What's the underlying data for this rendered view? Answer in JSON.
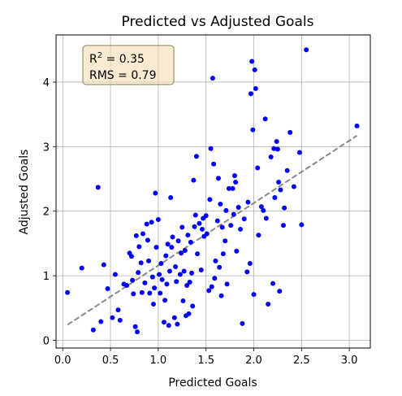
{
  "chart_data": {
    "type": "scatter",
    "title": "Predicted vs Adjusted Goals",
    "xlabel": "Predicted Goals",
    "ylabel": "Adjusted Goals",
    "xlim": [
      -0.07,
      3.22
    ],
    "ylim": [
      -0.12,
      4.73
    ],
    "xticks": [
      "0.0",
      "0.5",
      "1.0",
      "1.5",
      "2.0",
      "2.5",
      "3.0"
    ],
    "xtick_values": [
      0.0,
      0.5,
      1.0,
      1.5,
      2.0,
      2.5,
      3.0
    ],
    "yticks": [
      "0",
      "1",
      "2",
      "3",
      "4"
    ],
    "ytick_values": [
      0,
      1,
      2,
      3,
      4
    ],
    "grid": true,
    "point_color": "#0000ff",
    "fit_color": "#888888",
    "annotation": {
      "r2_prefix": "R",
      "r2_sup": "2",
      "r2_value": " = 0.35",
      "rms": "RMS = 0.79",
      "box_fill": "#f5deb3",
      "box_stroke": "#8a7a5a"
    },
    "fit_line": {
      "x": [
        0.05,
        3.08
      ],
      "y": [
        0.24,
        3.17
      ]
    },
    "points": [
      [
        0.05,
        0.74
      ],
      [
        0.2,
        1.12
      ],
      [
        0.32,
        0.16
      ],
      [
        0.37,
        2.37
      ],
      [
        0.4,
        0.29
      ],
      [
        0.43,
        1.17
      ],
      [
        0.47,
        0.8
      ],
      [
        0.52,
        0.35
      ],
      [
        0.55,
        1.02
      ],
      [
        0.58,
        0.47
      ],
      [
        0.6,
        0.31
      ],
      [
        0.64,
        0.87
      ],
      [
        0.67,
        0.85
      ],
      [
        0.7,
        1.35
      ],
      [
        0.72,
        1.3
      ],
      [
        0.73,
        0.93
      ],
      [
        0.74,
        0.72
      ],
      [
        0.76,
        0.21
      ],
      [
        0.77,
        1.62
      ],
      [
        0.78,
        0.13
      ],
      [
        0.79,
        1.05
      ],
      [
        0.8,
        1.45
      ],
      [
        0.82,
        1.2
      ],
      [
        0.83,
        0.74
      ],
      [
        0.84,
        1.65
      ],
      [
        0.86,
        0.89
      ],
      [
        0.88,
        1.8
      ],
      [
        0.89,
        1.55
      ],
      [
        0.9,
        1.23
      ],
      [
        0.91,
        0.73
      ],
      [
        0.93,
        1.83
      ],
      [
        0.94,
        0.98
      ],
      [
        0.95,
        0.56
      ],
      [
        0.96,
        0.81
      ],
      [
        0.97,
        2.28
      ],
      [
        0.98,
        1.44
      ],
      [
        1.0,
        1.87
      ],
      [
        1.01,
        1.02
      ],
      [
        1.02,
        0.73
      ],
      [
        1.03,
        1.19
      ],
      [
        1.04,
        0.94
      ],
      [
        1.06,
        0.28
      ],
      [
        1.07,
        0.62
      ],
      [
        1.08,
        1.31
      ],
      [
        1.09,
        0.87
      ],
      [
        1.1,
        1.49
      ],
      [
        1.11,
        0.23
      ],
      [
        1.12,
        1.07
      ],
      [
        1.13,
        2.21
      ],
      [
        1.14,
        1.44
      ],
      [
        1.15,
        1.6
      ],
      [
        1.17,
        0.35
      ],
      [
        1.18,
        1.14
      ],
      [
        1.19,
        0.91
      ],
      [
        1.2,
        0.25
      ],
      [
        1.21,
        1.54
      ],
      [
        1.23,
        1.02
      ],
      [
        1.24,
        1.35
      ],
      [
        1.25,
        1.75
      ],
      [
        1.26,
        0.61
      ],
      [
        1.27,
        1.07
      ],
      [
        1.28,
        1.39
      ],
      [
        1.29,
        0.38
      ],
      [
        1.3,
        0.85
      ],
      [
        1.31,
        1.63
      ],
      [
        1.32,
        0.41
      ],
      [
        1.33,
        0.9
      ],
      [
        1.34,
        1.52
      ],
      [
        1.35,
        1.04
      ],
      [
        1.36,
        0.53
      ],
      [
        1.37,
        2.48
      ],
      [
        1.38,
        1.76
      ],
      [
        1.39,
        1.94
      ],
      [
        1.4,
        2.85
      ],
      [
        1.41,
        1.34
      ],
      [
        1.43,
        1.81
      ],
      [
        1.45,
        1.09
      ],
      [
        1.46,
        1.72
      ],
      [
        1.47,
        1.89
      ],
      [
        1.48,
        1.61
      ],
      [
        1.5,
        1.93
      ],
      [
        1.51,
        1.65
      ],
      [
        1.53,
        0.77
      ],
      [
        1.54,
        2.18
      ],
      [
        1.55,
        2.97
      ],
      [
        1.56,
        0.83
      ],
      [
        1.57,
        4.06
      ],
      [
        1.58,
        2.73
      ],
      [
        1.59,
        0.96
      ],
      [
        1.6,
        1.23
      ],
      [
        1.62,
        1.85
      ],
      [
        1.63,
        2.51
      ],
      [
        1.64,
        1.13
      ],
      [
        1.65,
        2.11
      ],
      [
        1.66,
        0.69
      ],
      [
        1.67,
        1.75
      ],
      [
        1.68,
        1.34
      ],
      [
        1.7,
        1.54
      ],
      [
        1.71,
        2.01
      ],
      [
        1.72,
        0.87
      ],
      [
        1.74,
        2.35
      ],
      [
        1.76,
        1.78
      ],
      [
        1.78,
        2.35
      ],
      [
        1.79,
        1.95
      ],
      [
        1.8,
        2.55
      ],
      [
        1.81,
        2.45
      ],
      [
        1.82,
        1.38
      ],
      [
        1.84,
        2.06
      ],
      [
        1.86,
        1.72
      ],
      [
        1.88,
        0.26
      ],
      [
        1.9,
        1.88
      ],
      [
        1.93,
        1.06
      ],
      [
        1.94,
        2.14
      ],
      [
        1.96,
        1.19
      ],
      [
        1.97,
        3.82
      ],
      [
        1.98,
        4.32
      ],
      [
        1.99,
        3.26
      ],
      [
        2.0,
        0.71
      ],
      [
        2.01,
        4.19
      ],
      [
        2.02,
        3.9
      ],
      [
        2.04,
        2.67
      ],
      [
        2.05,
        1.63
      ],
      [
        2.08,
        2.07
      ],
      [
        2.1,
        2.01
      ],
      [
        2.12,
        3.43
      ],
      [
        2.13,
        1.89
      ],
      [
        2.15,
        0.56
      ],
      [
        2.18,
        2.84
      ],
      [
        2.2,
        0.88
      ],
      [
        2.21,
        2.97
      ],
      [
        2.22,
        2.21
      ],
      [
        2.24,
        3.08
      ],
      [
        2.25,
        2.96
      ],
      [
        2.26,
        2.45
      ],
      [
        2.27,
        0.76
      ],
      [
        2.28,
        2.33
      ],
      [
        2.31,
        1.78
      ],
      [
        2.32,
        2.05
      ],
      [
        2.35,
        2.63
      ],
      [
        2.38,
        3.22
      ],
      [
        2.42,
        2.38
      ],
      [
        2.48,
        2.91
      ],
      [
        2.5,
        1.79
      ],
      [
        2.55,
        4.5
      ],
      [
        3.08,
        3.32
      ]
    ]
  }
}
